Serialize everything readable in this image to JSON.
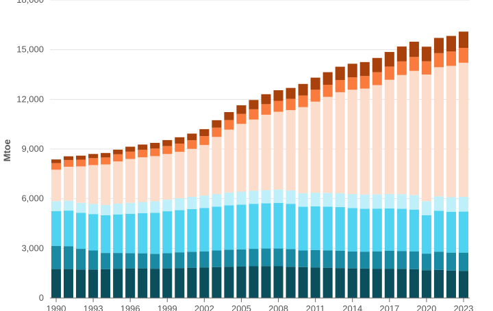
{
  "chart_data": {
    "type": "bar",
    "stacked": true,
    "title": "",
    "xlabel": "",
    "ylabel": "Mtoe",
    "ylim": [
      0,
      18000
    ],
    "yticks": [
      0,
      3000,
      6000,
      9000,
      12000,
      15000,
      18000
    ],
    "ytick_labels": [
      "0",
      "3,000",
      "6,000",
      "9,000",
      "12,000",
      "15,000",
      "18,000"
    ],
    "grid": true,
    "legend": "none",
    "categories": [
      "1990",
      "1991",
      "1992",
      "1993",
      "1994",
      "1995",
      "1996",
      "1997",
      "1998",
      "1999",
      "2000",
      "2001",
      "2002",
      "2003",
      "2004",
      "2005",
      "2006",
      "2007",
      "2008",
      "2009",
      "2010",
      "2011",
      "2012",
      "2013",
      "2014",
      "2015",
      "2016",
      "2017",
      "2018",
      "2019",
      "2020",
      "2021",
      "2022",
      "2023"
    ],
    "xtick_labels": [
      "1990",
      "1993",
      "1996",
      "1999",
      "2002",
      "2005",
      "2008",
      "2011",
      "2014",
      "2017",
      "2020",
      "2023"
    ],
    "series": [
      {
        "color": "#0b4f5c",
        "values": [
          1750,
          1750,
          1720,
          1720,
          1740,
          1770,
          1790,
          1790,
          1770,
          1790,
          1810,
          1830,
          1850,
          1870,
          1890,
          1900,
          1920,
          1930,
          1920,
          1890,
          1870,
          1850,
          1830,
          1810,
          1790,
          1780,
          1770,
          1770,
          1760,
          1740,
          1680,
          1700,
          1660,
          1640
        ]
      },
      {
        "color": "#1a8aa3",
        "values": [
          1400,
          1380,
          1250,
          1150,
          980,
          950,
          920,
          910,
          900,
          920,
          950,
          960,
          970,
          1000,
          1030,
          1040,
          1050,
          1060,
          1070,
          1070,
          1000,
          1050,
          1050,
          1050,
          1020,
          1020,
          1050,
          1090,
          1080,
          1080,
          1000,
          1100,
          1080,
          1100
        ]
      },
      {
        "color": "#4fd3f1",
        "values": [
          2100,
          2150,
          2180,
          2200,
          2280,
          2330,
          2380,
          2430,
          2480,
          2530,
          2550,
          2580,
          2620,
          2650,
          2680,
          2700,
          2720,
          2730,
          2750,
          2730,
          2640,
          2640,
          2640,
          2630,
          2620,
          2590,
          2580,
          2550,
          2550,
          2520,
          2320,
          2470,
          2470,
          2480
        ]
      },
      {
        "color": "#bff0fa",
        "values": [
          600,
          600,
          600,
          610,
          620,
          650,
          660,
          670,
          690,
          700,
          720,
          740,
          750,
          760,
          770,
          780,
          790,
          800,
          810,
          810,
          820,
          820,
          830,
          840,
          850,
          860,
          860,
          870,
          880,
          880,
          850,
          870,
          880,
          890
        ]
      },
      {
        "color": "#fcdccb",
        "values": [
          1900,
          2050,
          2200,
          2350,
          2450,
          2550,
          2650,
          2700,
          2730,
          2760,
          2800,
          2900,
          3050,
          3450,
          3800,
          4100,
          4300,
          4550,
          4700,
          4850,
          5200,
          5500,
          5800,
          6100,
          6300,
          6400,
          6600,
          6900,
          7200,
          7500,
          7650,
          7800,
          7930,
          8100
        ]
      },
      {
        "color": "#f97b3d",
        "values": [
          400,
          400,
          410,
          420,
          420,
          430,
          440,
          450,
          460,
          480,
          500,
          520,
          540,
          560,
          580,
          600,
          620,
          640,
          660,
          680,
          700,
          720,
          730,
          740,
          750,
          760,
          780,
          800,
          820,
          840,
          800,
          850,
          870,
          900
        ]
      },
      {
        "color": "#a8410c",
        "values": [
          220,
          230,
          240,
          250,
          270,
          280,
          300,
          320,
          340,
          360,
          380,
          400,
          420,
          450,
          480,
          520,
          560,
          600,
          640,
          660,
          700,
          730,
          760,
          800,
          820,
          840,
          860,
          880,
          900,
          920,
          880,
          920,
          940,
          980
        ]
      }
    ]
  }
}
